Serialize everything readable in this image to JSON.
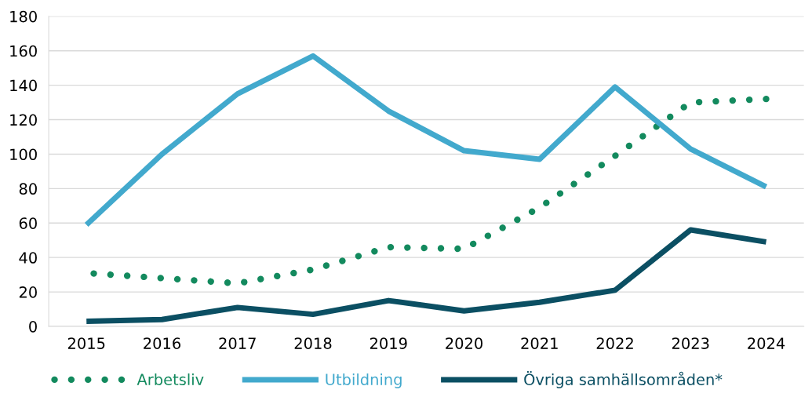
{
  "chart_data": {
    "type": "line",
    "categories": [
      "2015",
      "2016",
      "2017",
      "2018",
      "2019",
      "2020",
      "2021",
      "2022",
      "2023",
      "2024"
    ],
    "series": [
      {
        "name": "Arbetsliv",
        "color": "#138a5e",
        "line_style": "dotted",
        "values": [
          31,
          28,
          25,
          33,
          46,
          45,
          69,
          99,
          130,
          132
        ]
      },
      {
        "name": "Utbildning",
        "color": "#42a9cd",
        "line_style": "solid",
        "values": [
          59,
          100,
          135,
          157,
          125,
          102,
          97,
          139,
          103,
          81
        ]
      },
      {
        "name": "Övriga samhällsområden*",
        "color": "#0b4f63",
        "line_style": "solid",
        "values": [
          3,
          4,
          11,
          7,
          15,
          9,
          14,
          21,
          56,
          49
        ]
      }
    ],
    "ylim": [
      0,
      180
    ],
    "yticks": [
      0,
      20,
      40,
      60,
      80,
      100,
      120,
      140,
      160,
      180
    ],
    "grid": "y",
    "legend": "bottom",
    "marker": "none"
  }
}
